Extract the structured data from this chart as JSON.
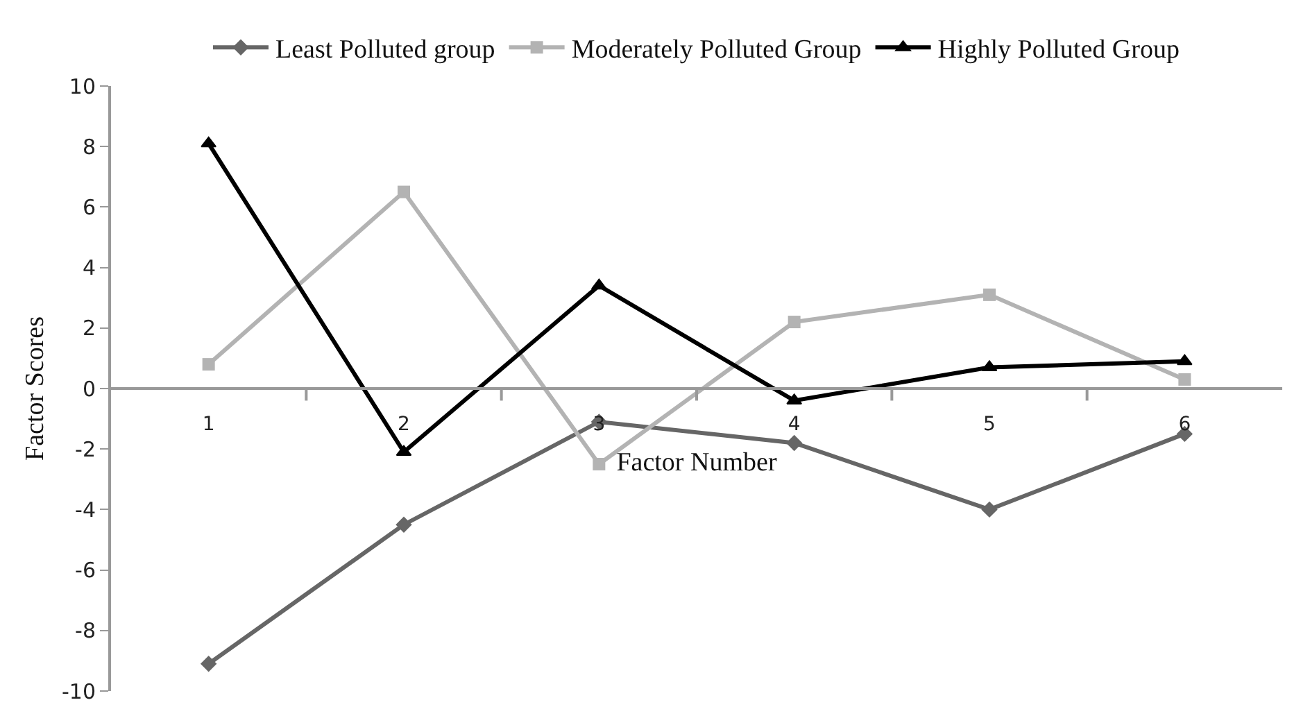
{
  "chart_data": {
    "type": "line",
    "xlabel": "Factor Number",
    "ylabel": "Factor Scores",
    "categories": [
      "1",
      "2",
      "3",
      "4",
      "5",
      "6"
    ],
    "series": [
      {
        "name": "Least Polluted group",
        "color": "#666666",
        "marker": "diamond",
        "values": [
          -9.1,
          -4.5,
          -1.1,
          -1.8,
          -4.0,
          -1.5
        ]
      },
      {
        "name": "Moderately Polluted Group",
        "color": "#b3b3b3",
        "marker": "square",
        "values": [
          0.8,
          6.5,
          -2.5,
          2.2,
          3.1,
          0.3
        ]
      },
      {
        "name": "Highly Polluted Group",
        "color": "#000000",
        "marker": "triangle",
        "values": [
          8.1,
          -2.1,
          3.4,
          -0.4,
          0.7,
          0.9
        ]
      }
    ],
    "ylim": [
      -10,
      10
    ],
    "yticks": [
      -10,
      -8,
      -6,
      -4,
      -2,
      0,
      2,
      4,
      6,
      8,
      10
    ],
    "grid": false,
    "legend": "top",
    "line_style": "solid"
  }
}
